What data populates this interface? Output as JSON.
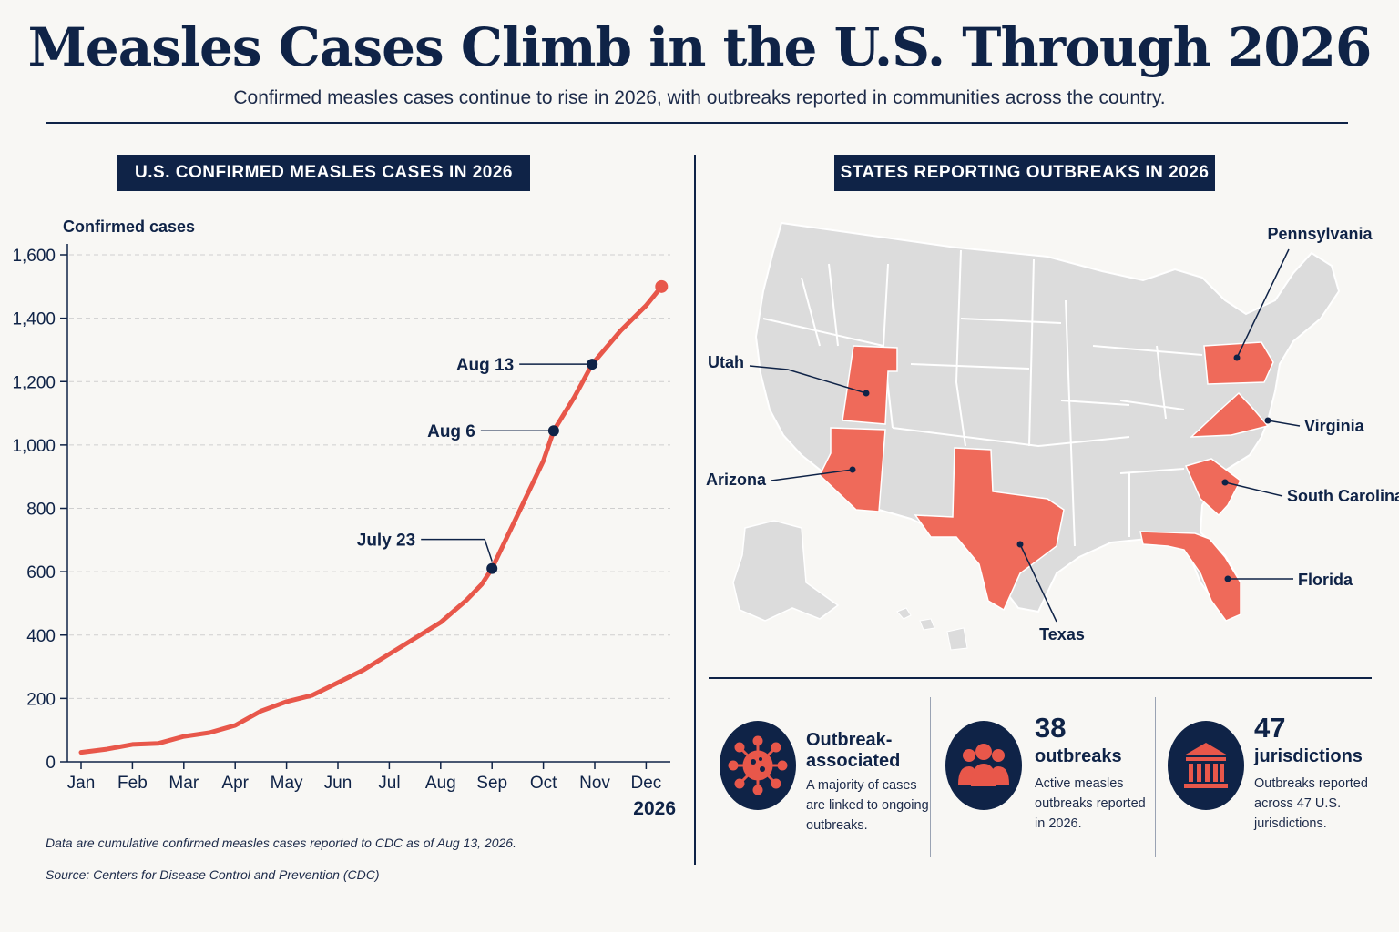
{
  "page": {
    "title": "Measles Cases Climb in the U.S. Through 2026",
    "subtitle": "Confirmed measles cases continue to rise in 2026, with outbreaks reported in communities across the country."
  },
  "chart_section": {
    "heading": "U.S. CONFIRMED MEASLES CASES IN 2026",
    "footnote": "Data are cumulative confirmed measles cases reported to CDC as of Aug 13, 2026.",
    "source": "Source: Centers for Disease Control and Prevention (CDC)"
  },
  "chart_data": {
    "type": "line",
    "title": "U.S. CONFIRMED MEASLES CASES IN 2026",
    "ylabel": "Confirmed cases",
    "year_label": "2026",
    "ylim": [
      0,
      1600
    ],
    "yticks": [
      0,
      200,
      400,
      600,
      800,
      1000,
      1200,
      1400,
      1600
    ],
    "ytick_labels": [
      "0",
      "200",
      "400",
      "600",
      "800",
      "1,000",
      "1,200",
      "1,400",
      "1,600"
    ],
    "months": [
      "Jan",
      "Feb",
      "Mar",
      "Apr",
      "May",
      "Jun",
      "Jul",
      "Aug",
      "Sep",
      "Oct",
      "Nov",
      "Dec"
    ],
    "grid": "horizontal dashed",
    "series": [
      {
        "color": "#e8574a",
        "points": [
          {
            "m": 0,
            "v": 30
          },
          {
            "m": 0.5,
            "v": 40
          },
          {
            "m": 1,
            "v": 55
          },
          {
            "m": 1.5,
            "v": 58
          },
          {
            "m": 2,
            "v": 80
          },
          {
            "m": 2.5,
            "v": 92
          },
          {
            "m": 3,
            "v": 115
          },
          {
            "m": 3.5,
            "v": 160
          },
          {
            "m": 4,
            "v": 190
          },
          {
            "m": 4.5,
            "v": 210
          },
          {
            "m": 5,
            "v": 250
          },
          {
            "m": 5.5,
            "v": 290
          },
          {
            "m": 6,
            "v": 340
          },
          {
            "m": 6.5,
            "v": 390
          },
          {
            "m": 7,
            "v": 440
          },
          {
            "m": 7.5,
            "v": 510
          },
          {
            "m": 7.8,
            "v": 560
          },
          {
            "m": 8.0,
            "v": 610
          },
          {
            "m": 8.5,
            "v": 780
          },
          {
            "m": 9.0,
            "v": 950
          },
          {
            "m": 9.2,
            "v": 1045
          },
          {
            "m": 9.6,
            "v": 1150
          },
          {
            "m": 9.95,
            "v": 1255
          },
          {
            "m": 10.5,
            "v": 1360
          },
          {
            "m": 11.0,
            "v": 1440
          },
          {
            "m": 11.3,
            "v": 1500
          }
        ]
      }
    ],
    "annotations": [
      {
        "label": "July 23",
        "m": 8.0,
        "v": 610
      },
      {
        "label": "Aug 6",
        "m": 9.2,
        "v": 1045
      },
      {
        "label": "Aug 13",
        "m": 9.95,
        "v": 1255
      }
    ]
  },
  "map_section": {
    "heading": "STATES REPORTING OUTBREAKS IN 2026",
    "highlight_color": "#ef6a5a",
    "states": [
      "Pennsylvania",
      "Utah",
      "Virginia",
      "Arizona",
      "South Carolina",
      "Florida",
      "Texas"
    ]
  },
  "stats": [
    {
      "icon": "virus-icon",
      "big": "",
      "head": "Outbreak-associated",
      "desc": "A majority of cases are linked to ongoing outbreaks."
    },
    {
      "icon": "people-icon",
      "big": "38",
      "head": "outbreaks",
      "desc": "Active measles outbreaks reported in 2026."
    },
    {
      "icon": "government-building-icon",
      "big": "47",
      "head": "jurisdictions",
      "desc": "Outbreaks reported across 47 U.S. jurisdictions."
    }
  ]
}
